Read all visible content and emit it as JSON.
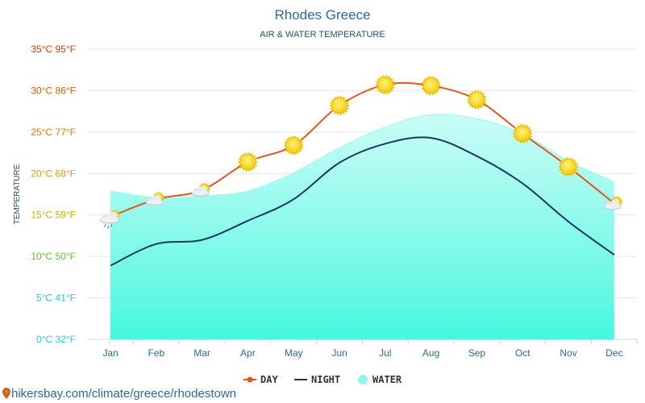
{
  "chart_data": {
    "type": "line",
    "title": "Rhodes Greece",
    "subtitle": "AIR & WATER TEMPERATURE",
    "ylabel": "TEMPERATURE",
    "ylim": [
      0,
      35
    ],
    "y_ticks": [
      {
        "value": 0,
        "label": "0°C 32°F",
        "color": "#1fd8c8"
      },
      {
        "value": 5,
        "label": "5°C 41°F",
        "color": "#2ac4dc"
      },
      {
        "value": 10,
        "label": "10°C 50°F",
        "color": "#5cc825"
      },
      {
        "value": 15,
        "label": "15°C 59°F",
        "color": "#c8b400"
      },
      {
        "value": 20,
        "label": "20°C 68°F",
        "color": "#e89a00"
      },
      {
        "value": 25,
        "label": "25°C 77°F",
        "color": "#e87800"
      },
      {
        "value": 30,
        "label": "30°C 86°F",
        "color": "#e05a00"
      },
      {
        "value": 35,
        "label": "35°C 95°F",
        "color": "#d83a00"
      }
    ],
    "categories": [
      "Jan",
      "Feb",
      "Mar",
      "Apr",
      "May",
      "Jun",
      "Jul",
      "Aug",
      "Sep",
      "Oct",
      "Nov",
      "Dec"
    ],
    "series": [
      {
        "name": "DAY",
        "color": "#e8531c",
        "values": [
          14.8,
          16.9,
          18.0,
          21.4,
          23.4,
          28.2,
          30.7,
          30.6,
          28.9,
          24.8,
          20.8,
          16.4
        ]
      },
      {
        "name": "NIGHT",
        "color": "#1a3a5c",
        "values": [
          8.9,
          11.5,
          12.0,
          14.3,
          16.9,
          21.3,
          23.6,
          24.3,
          22.1,
          18.8,
          14.2,
          10.2
        ]
      },
      {
        "name": "WATER",
        "color": "#8ef5ec",
        "values": [
          17.9,
          17.1,
          17.3,
          17.9,
          20.1,
          23.1,
          25.6,
          27.1,
          26.6,
          24.8,
          21.5,
          19.0
        ]
      }
    ],
    "weather_icons": [
      "cloud-rain-sun-icon",
      "sun-cloud-icon",
      "sun-cloud-icon",
      "sun-icon",
      "sun-icon",
      "sun-icon",
      "sun-icon",
      "sun-icon",
      "sun-icon",
      "sun-icon",
      "sun-icon",
      "sun-cloud-icon"
    ],
    "grid": true,
    "legend_position": "bottom"
  },
  "source_url": "hikersbay.com/climate/greece/rhodestown"
}
